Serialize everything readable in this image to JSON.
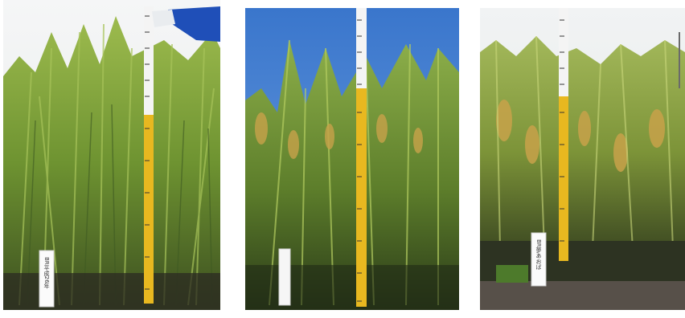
{
  "panels": [
    {
      "stake_label": "BR平成26年"
    },
    {
      "stake_label": ""
    },
    {
      "stake_label": "BR夢あおば"
    }
  ],
  "colors": {
    "sky_overcast": "#eef1f3",
    "sky_blue": "#3f7fd0",
    "leaf_green": "#7ea33b",
    "dark_green": "#2f4a1a",
    "grain_gold": "#c8a24a",
    "soil": "#3b3026",
    "staff_yellow": "#e8b820",
    "staff_white": "#f4f4f4",
    "glove_blue": "#1f4fb8"
  }
}
